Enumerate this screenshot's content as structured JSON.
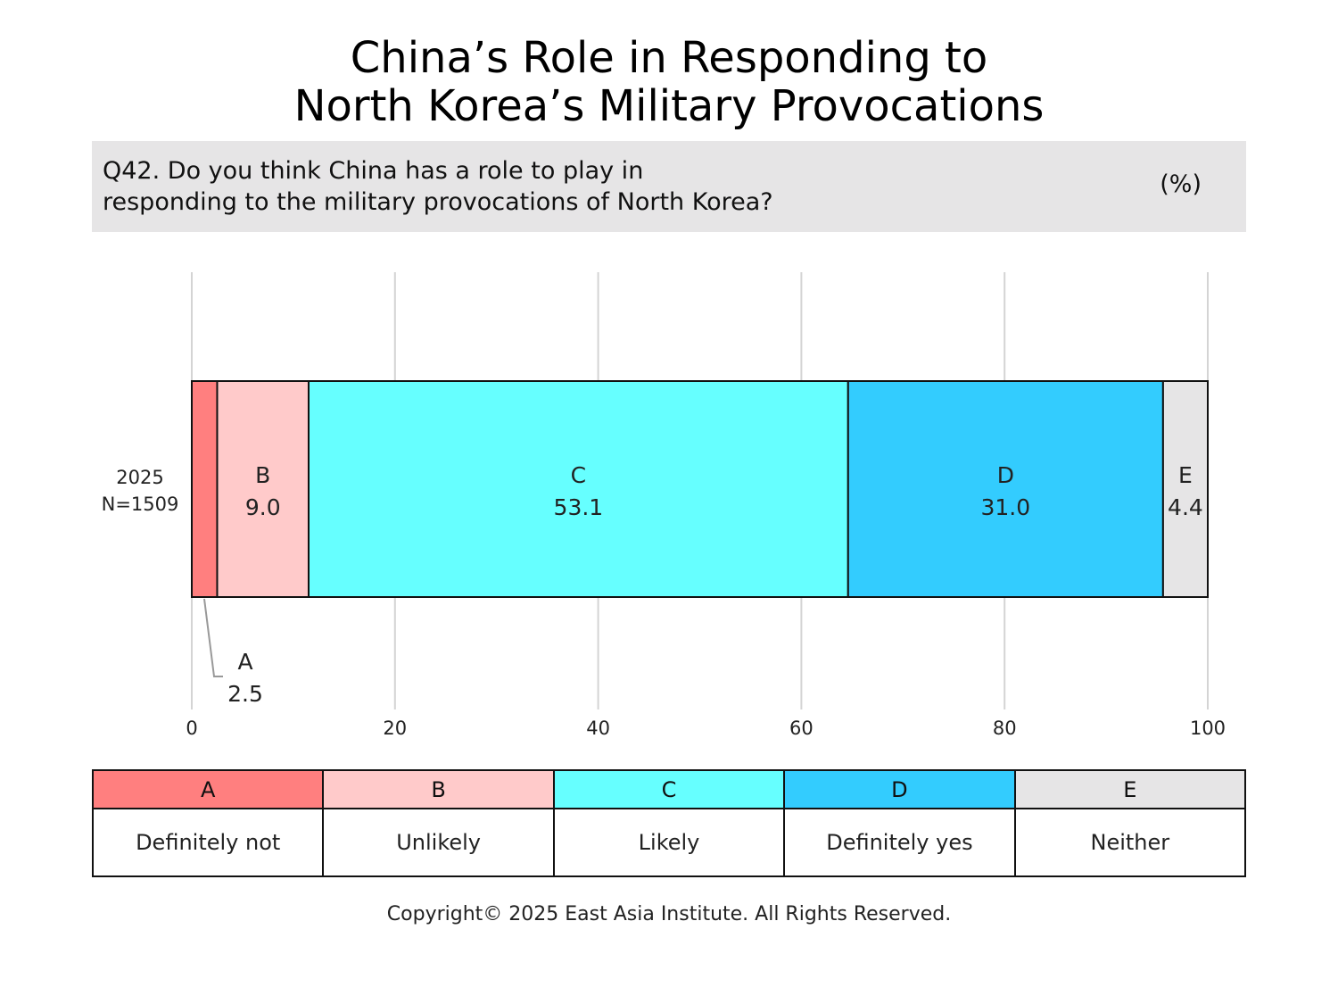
{
  "title": {
    "line1": "China’s Role in Responding to",
    "line2": "North Korea’s Military Provocations"
  },
  "question": {
    "line1": "Q42. Do you think China has a role to play in",
    "line2": "responding to the military provocations of North Korea?",
    "unit": "(%)"
  },
  "chart_data": {
    "type": "bar",
    "orientation": "horizontal",
    "stacked": true,
    "categories": [
      "2025"
    ],
    "category_labels": [
      [
        "2025",
        "N=1509"
      ]
    ],
    "series": [
      {
        "name": "A",
        "values": [
          2.5
        ],
        "color": "#ff7f7f"
      },
      {
        "name": "B",
        "values": [
          9.0
        ],
        "color": "#ffcaca"
      },
      {
        "name": "C",
        "values": [
          53.1
        ],
        "color": "#66ffff"
      },
      {
        "name": "D",
        "values": [
          31.0
        ],
        "color": "#33ccfe"
      },
      {
        "name": "E",
        "values": [
          4.4
        ],
        "color": "#e6e5e6"
      }
    ],
    "value_labels": [
      "2.5",
      "9.0",
      "53.1",
      "31.0",
      "4.4"
    ],
    "xlim": [
      0,
      100
    ],
    "xticks": [
      "0",
      "20",
      "40",
      "60",
      "80",
      "100"
    ],
    "grid": "vertical"
  },
  "legend": [
    {
      "key": "A",
      "label": "Definitely not",
      "color": "#ff7f7f"
    },
    {
      "key": "B",
      "label": "Unlikely",
      "color": "#ffcaca"
    },
    {
      "key": "C",
      "label": "Likely",
      "color": "#66ffff"
    },
    {
      "key": "D",
      "label": "Definitely yes",
      "color": "#33ccfe"
    },
    {
      "key": "E",
      "label": "Neither",
      "color": "#e6e5e6"
    }
  ],
  "copyright": "Copyright© 2025 East Asia Institute. All Rights Reserved."
}
